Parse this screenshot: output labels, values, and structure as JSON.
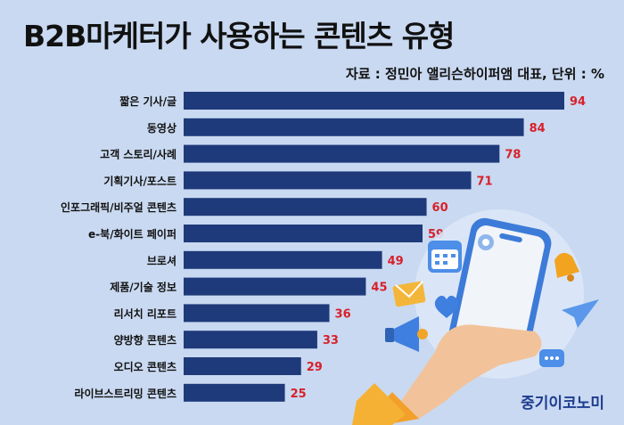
{
  "title": "B2B마케터가 사용하는 콘텐츠 유형",
  "source": "자료 : 정민아 앨리슨하이퍼앰 대표, 단위 : %",
  "brand": "중기이코노미",
  "colors": {
    "bar": "#1f3a7a",
    "value": "#d8202a",
    "background": "#c9d9f1"
  },
  "chart_data": {
    "type": "bar",
    "orientation": "horizontal",
    "title": "B2B마케터가 사용하는 콘텐츠 유형",
    "unit": "%",
    "categories": [
      "짧은 기사/글",
      "동영상",
      "고객 스토리/사례",
      "기획기사/포스트",
      "인포그래픽/비주얼 콘텐츠",
      "e-북/화이트 페이퍼",
      "브로셔",
      "제품/기술 정보",
      "리서치 리포트",
      "양방향 콘텐츠",
      "오디오 콘텐츠",
      "라이브스트리밍 콘텐츠"
    ],
    "values": [
      94,
      84,
      78,
      71,
      60,
      59,
      49,
      45,
      36,
      33,
      29,
      25
    ],
    "xlim": [
      0,
      100
    ],
    "grid": false,
    "legend": "none"
  }
}
